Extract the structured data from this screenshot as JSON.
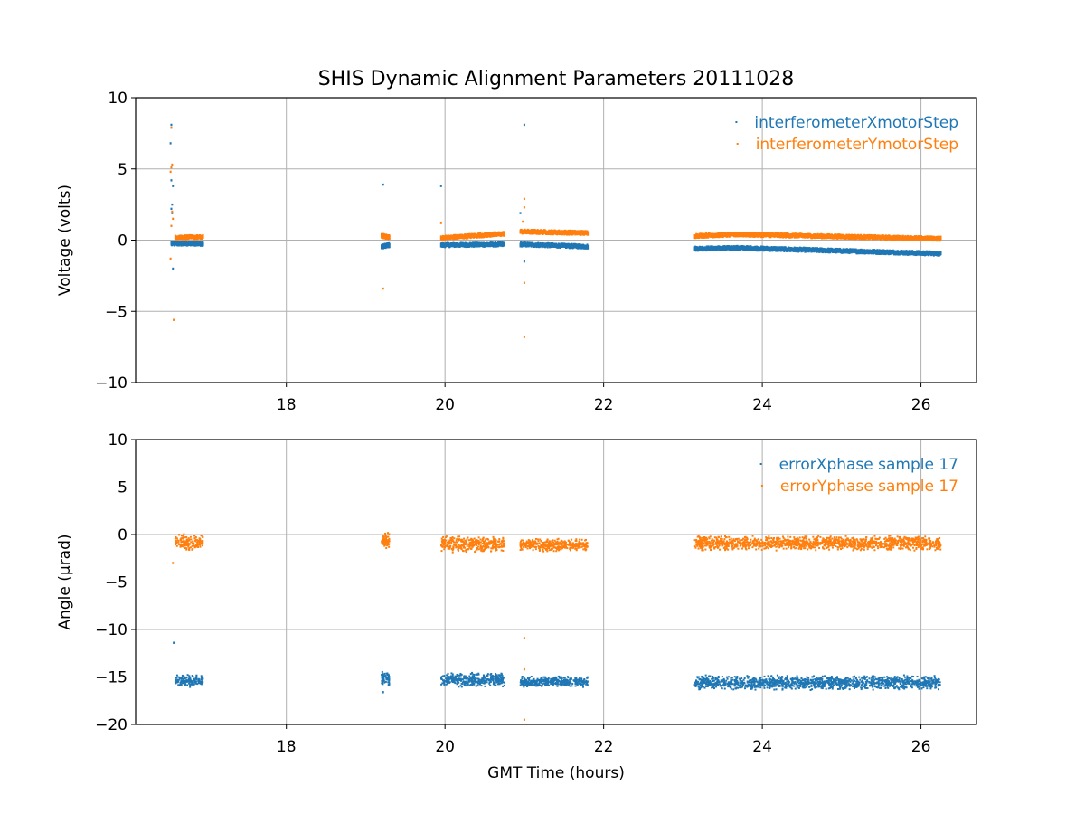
{
  "title": "SHIS Dynamic Alignment Parameters 20111028",
  "colors": {
    "series1": "#1f77b4",
    "series2": "#ff7f0e",
    "grid": "#b0b0b0",
    "axis": "#000000"
  },
  "chart_data": [
    {
      "type": "scatter",
      "ylabel": "Voltage (volts)",
      "xlabel": "",
      "xlim": [
        16.1,
        26.7
      ],
      "ylim": [
        -10,
        10
      ],
      "xticks": [
        18,
        20,
        22,
        24,
        26
      ],
      "yticks": [
        10,
        5,
        0,
        -5,
        -10
      ],
      "ytick_labels": [
        "10",
        "5",
        "0",
        "−5",
        "−10"
      ],
      "grid": true,
      "legend_position": "top-right",
      "series": [
        {
          "name": "interferometerXmotorStep",
          "segments": [
            {
              "x": [
                16.55,
                16.95
              ],
              "y": [
                -0.25,
                -0.25
              ]
            },
            {
              "x": [
                19.2,
                19.3
              ],
              "y": [
                -0.45,
                -0.35
              ]
            },
            {
              "x": [
                19.95,
                20.75
              ],
              "y": [
                -0.35,
                -0.3
              ]
            },
            {
              "x": [
                20.95,
                21.8
              ],
              "y": [
                -0.3,
                -0.45
              ]
            },
            {
              "x": [
                23.15,
                23.7
              ],
              "y": [
                -0.6,
                -0.55
              ]
            },
            {
              "x": [
                23.7,
                26.25
              ],
              "y": [
                -0.55,
                -0.95
              ]
            }
          ],
          "outliers": [
            {
              "x": 16.55,
              "y": 8.1
            },
            {
              "x": 16.55,
              "y": 7.9
            },
            {
              "x": 16.54,
              "y": 6.8
            },
            {
              "x": 16.55,
              "y": 4.2
            },
            {
              "x": 16.57,
              "y": 3.8
            },
            {
              "x": 16.56,
              "y": 2.5
            },
            {
              "x": 16.55,
              "y": 2.2
            },
            {
              "x": 16.56,
              "y": 1.9
            },
            {
              "x": 16.57,
              "y": -2.0
            },
            {
              "x": 19.22,
              "y": 3.9
            },
            {
              "x": 19.95,
              "y": 3.8
            },
            {
              "x": 21.0,
              "y": 8.1
            },
            {
              "x": 20.95,
              "y": 1.9
            },
            {
              "x": 21.0,
              "y": -1.5
            }
          ]
        },
        {
          "name": "interferometerYmotorStep",
          "segments": [
            {
              "x": [
                16.6,
                16.95
              ],
              "y": [
                0.2,
                0.2
              ]
            },
            {
              "x": [
                19.2,
                19.3
              ],
              "y": [
                0.3,
                0.2
              ]
            },
            {
              "x": [
                19.95,
                20.75
              ],
              "y": [
                0.15,
                0.45
              ]
            },
            {
              "x": [
                20.95,
                21.8
              ],
              "y": [
                0.6,
                0.5
              ]
            },
            {
              "x": [
                23.15,
                23.7
              ],
              "y": [
                0.3,
                0.4
              ]
            },
            {
              "x": [
                23.7,
                26.25
              ],
              "y": [
                0.4,
                0.1
              ]
            }
          ],
          "outliers": [
            {
              "x": 16.55,
              "y": 7.9
            },
            {
              "x": 16.56,
              "y": 5.3
            },
            {
              "x": 16.55,
              "y": 5.1
            },
            {
              "x": 16.54,
              "y": 4.8
            },
            {
              "x": 16.56,
              "y": 2.0
            },
            {
              "x": 16.57,
              "y": 1.5
            },
            {
              "x": 16.55,
              "y": 1.0
            },
            {
              "x": 16.54,
              "y": -1.3
            },
            {
              "x": 16.58,
              "y": -5.6
            },
            {
              "x": 19.22,
              "y": -3.4
            },
            {
              "x": 19.95,
              "y": 1.2
            },
            {
              "x": 21.0,
              "y": 2.9
            },
            {
              "x": 21.0,
              "y": 2.3
            },
            {
              "x": 20.98,
              "y": 1.3
            },
            {
              "x": 21.0,
              "y": -3.0
            },
            {
              "x": 21.0,
              "y": -6.8
            }
          ]
        }
      ]
    },
    {
      "type": "scatter",
      "ylabel": "Angle (μrad)",
      "xlabel": "GMT Time (hours)",
      "xlim": [
        16.1,
        26.7
      ],
      "ylim": [
        -20,
        10
      ],
      "xticks": [
        18,
        20,
        22,
        24,
        26
      ],
      "yticks": [
        10,
        5,
        0,
        -5,
        -10,
        -15,
        -20
      ],
      "ytick_labels": [
        "10",
        "5",
        "0",
        "−5",
        "−10",
        "−15",
        "−20"
      ],
      "grid": true,
      "legend_position": "top-right",
      "series": [
        {
          "name": "errorXphase sample 17",
          "bands": [
            {
              "x": [
                16.6,
                16.95
              ],
              "y": -15.4,
              "spread": 0.7
            },
            {
              "x": [
                19.2,
                19.3
              ],
              "y": -15.2,
              "spread": 0.8
            },
            {
              "x": [
                19.95,
                20.75
              ],
              "y": -15.3,
              "spread": 0.8
            },
            {
              "x": [
                20.95,
                21.8
              ],
              "y": -15.5,
              "spread": 0.6
            },
            {
              "x": [
                23.15,
                26.25
              ],
              "y": -15.6,
              "spread": 0.8
            }
          ],
          "outliers": [
            {
              "x": 16.58,
              "y": -11.4
            },
            {
              "x": 19.22,
              "y": -16.6
            }
          ]
        },
        {
          "name": "errorYphase sample 17",
          "bands": [
            {
              "x": [
                16.6,
                16.95
              ],
              "y": -0.8,
              "spread": 0.9
            },
            {
              "x": [
                19.2,
                19.3
              ],
              "y": -0.7,
              "spread": 1.0
            },
            {
              "x": [
                19.95,
                20.75
              ],
              "y": -1.0,
              "spread": 0.9
            },
            {
              "x": [
                20.95,
                21.8
              ],
              "y": -1.1,
              "spread": 0.7
            },
            {
              "x": [
                23.15,
                26.25
              ],
              "y": -0.9,
              "spread": 0.8
            }
          ],
          "outliers": [
            {
              "x": 16.57,
              "y": -3.0
            },
            {
              "x": 21.0,
              "y": -10.9
            },
            {
              "x": 21.0,
              "y": -14.2
            },
            {
              "x": 21.0,
              "y": -19.5
            }
          ]
        }
      ]
    }
  ]
}
